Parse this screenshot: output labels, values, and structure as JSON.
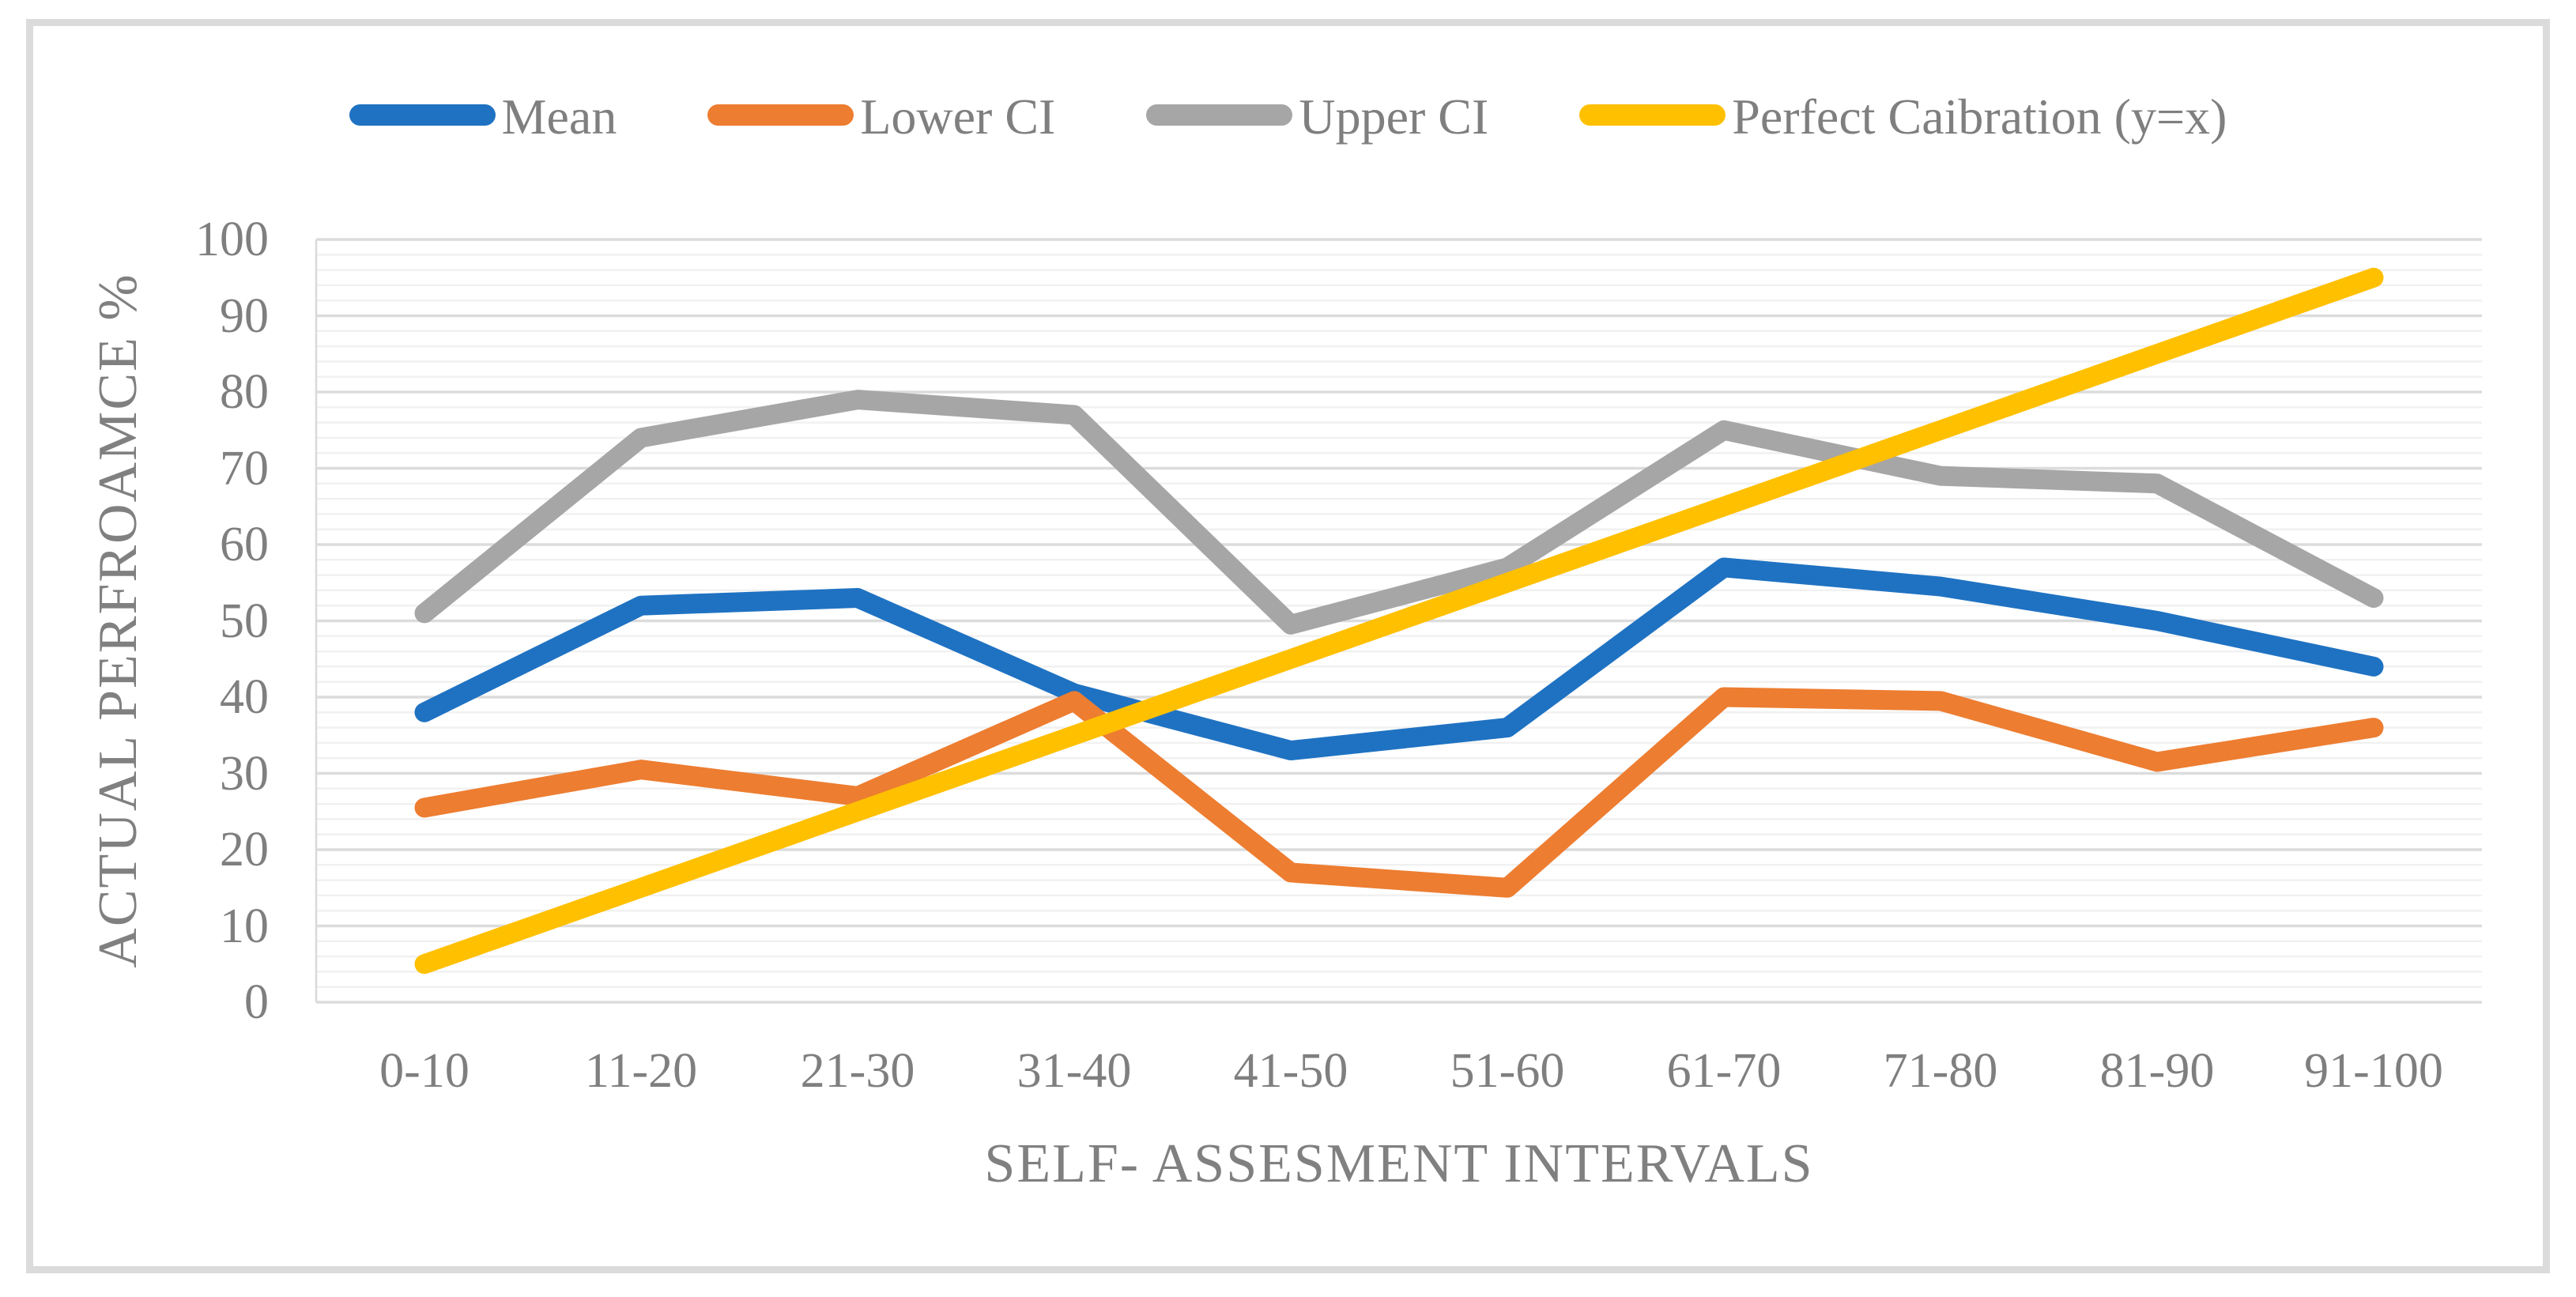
{
  "chart_data": {
    "type": "line",
    "categories": [
      "0-10",
      "11-20",
      "21-30",
      "31-40",
      "41-50",
      "51-60",
      "61-70",
      "71-80",
      "81-90",
      "91-100"
    ],
    "series": [
      {
        "name": "Mean",
        "color": "#1F72C2",
        "values": [
          38,
          52,
          53,
          40.5,
          33,
          36,
          57,
          54.5,
          50,
          44
        ]
      },
      {
        "name": "Lower CI",
        "color": "#ED7D31",
        "values": [
          25.5,
          30.5,
          27,
          39.5,
          17,
          15,
          40,
          39.5,
          31.5,
          36
        ]
      },
      {
        "name": "Upper CI",
        "color": "#A6A6A6",
        "values": [
          51,
          74,
          79,
          77,
          49.5,
          57,
          75,
          69,
          68,
          53
        ]
      },
      {
        "name": "Perfect Caibration (y=x)",
        "color": "#FFC000",
        "values": [
          5,
          15,
          25,
          35,
          45,
          55,
          65,
          75,
          85,
          95
        ]
      }
    ],
    "xlabel": "SELF- ASSESMENT INTERVALS",
    "ylabel": "ACTUAL PERFROAMCE %",
    "ylim": [
      0,
      100
    ],
    "y_ticks": [
      0,
      10,
      20,
      30,
      40,
      50,
      60,
      70,
      80,
      90,
      100
    ],
    "y_major_step": 10,
    "y_minor_step": 2,
    "grid": true,
    "legend_position": "top"
  },
  "styles": {
    "background": "#FFFFFF",
    "figure_border_color": "#DBDBDB",
    "major_gridline_color": "#DCDCDC",
    "minor_gridline_color": "#F1F1F1",
    "axis_line_color": "#D9D9D9",
    "tick_text_color": "#7F7F7F",
    "title_text_color": "#808080",
    "legend_text_color": "#7F7F7F"
  }
}
